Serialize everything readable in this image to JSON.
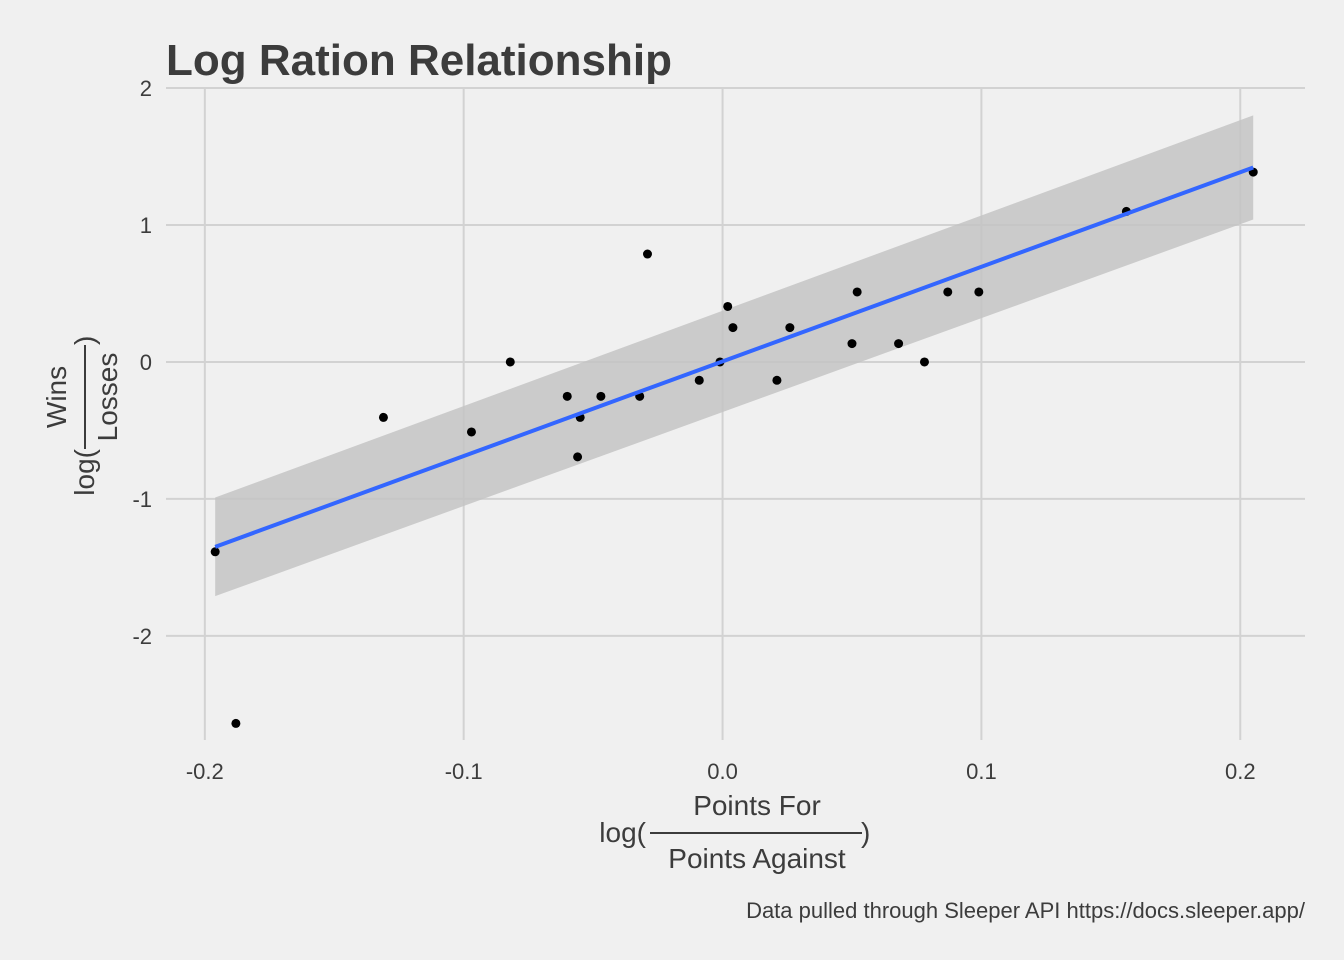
{
  "chart_data": {
    "type": "scatter",
    "title": "Log Ration Relationship",
    "xlabel": {
      "prefix": "log(",
      "numerator": "Points For",
      "denominator": "Points Against",
      "suffix": ")"
    },
    "ylabel": {
      "prefix": "log(",
      "numerator": "Wins",
      "denominator": "Losses",
      "suffix": ")"
    },
    "caption": "Data pulled through Sleeper API https://docs.sleeper.app/",
    "xlim": [
      -0.215,
      0.225
    ],
    "ylim": [
      -2.76,
      2.0
    ],
    "x_ticks": [
      -0.2,
      -0.1,
      0.0,
      0.1,
      0.2
    ],
    "x_tick_labels": [
      "-0.2",
      "-0.1",
      "0.0",
      "0.1",
      "0.2"
    ],
    "y_ticks": [
      -2,
      -1,
      0,
      1,
      2
    ],
    "y_tick_labels": [
      "-2",
      "-1",
      "0",
      "1",
      "2"
    ],
    "grid": true,
    "points": [
      {
        "x": -0.196,
        "y": -1.386
      },
      {
        "x": -0.188,
        "y": -2.639
      },
      {
        "x": -0.131,
        "y": -0.405
      },
      {
        "x": -0.097,
        "y": -0.511
      },
      {
        "x": -0.082,
        "y": 0.0
      },
      {
        "x": -0.06,
        "y": -0.251
      },
      {
        "x": -0.056,
        "y": -0.693
      },
      {
        "x": -0.055,
        "y": -0.405
      },
      {
        "x": -0.047,
        "y": -0.251
      },
      {
        "x": -0.032,
        "y": -0.251
      },
      {
        "x": -0.029,
        "y": 0.788
      },
      {
        "x": -0.009,
        "y": -0.134
      },
      {
        "x": -0.001,
        "y": 0.0
      },
      {
        "x": 0.002,
        "y": 0.405
      },
      {
        "x": 0.004,
        "y": 0.251
      },
      {
        "x": 0.021,
        "y": -0.134
      },
      {
        "x": 0.026,
        "y": 0.251
      },
      {
        "x": 0.05,
        "y": 0.134
      },
      {
        "x": 0.052,
        "y": 0.511
      },
      {
        "x": 0.068,
        "y": 0.134
      },
      {
        "x": 0.078,
        "y": 0.0
      },
      {
        "x": 0.087,
        "y": 0.511
      },
      {
        "x": 0.099,
        "y": 0.511
      },
      {
        "x": 0.156,
        "y": 1.099
      },
      {
        "x": 0.205,
        "y": 1.386
      }
    ],
    "fit": {
      "method": "linear",
      "x": [
        -0.196,
        0.205
      ],
      "y": [
        -1.35,
        1.42
      ],
      "ci_lower": [
        -1.71,
        1.04
      ],
      "ci_upper": [
        -0.99,
        1.8
      ]
    },
    "colors": {
      "background": "#f0f0f0",
      "grid": "#d2d2d2",
      "points": "#000000",
      "fit_line": "#3366ff",
      "ci_band": "#c4c4c4",
      "text": "#3c3c3c"
    }
  }
}
